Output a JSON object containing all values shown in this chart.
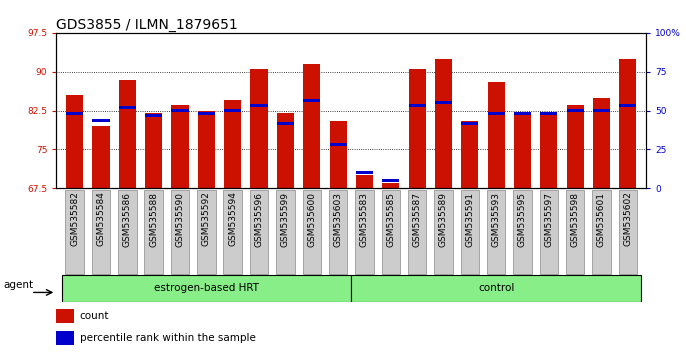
{
  "title": "GDS3855 / ILMN_1879651",
  "samples": [
    "GSM535582",
    "GSM535584",
    "GSM535586",
    "GSM535588",
    "GSM535590",
    "GSM535592",
    "GSM535594",
    "GSM535596",
    "GSM535599",
    "GSM535600",
    "GSM535603",
    "GSM535583",
    "GSM535585",
    "GSM535587",
    "GSM535589",
    "GSM535591",
    "GSM535593",
    "GSM535595",
    "GSM535597",
    "GSM535598",
    "GSM535601",
    "GSM535602"
  ],
  "red_values": [
    85.5,
    79.5,
    88.5,
    82.0,
    83.5,
    82.5,
    84.5,
    90.5,
    82.0,
    91.5,
    80.5,
    70.0,
    68.5,
    90.5,
    92.5,
    80.5,
    88.0,
    82.0,
    82.0,
    83.5,
    85.0,
    92.5
  ],
  "blue_values": [
    82.0,
    80.5,
    83.0,
    81.5,
    82.5,
    82.0,
    82.5,
    83.5,
    80.0,
    84.5,
    76.0,
    70.5,
    69.0,
    83.5,
    84.0,
    80.0,
    82.0,
    82.0,
    82.0,
    82.5,
    82.5,
    83.5
  ],
  "group1_count": 11,
  "group2_count": 11,
  "group1_label": "estrogen-based HRT",
  "group2_label": "control",
  "agent_label": "agent",
  "ylim_left": [
    67.5,
    97.5
  ],
  "ylim_right": [
    0,
    100
  ],
  "yticks_left": [
    67.5,
    75.0,
    82.5,
    90.0,
    97.5
  ],
  "yticks_right": [
    0,
    25,
    50,
    75,
    100
  ],
  "red_color": "#cc1100",
  "blue_color": "#0000cc",
  "group_bg": "#88ee88",
  "bar_width": 0.65,
  "bar_base": 67.5,
  "title_fontsize": 10,
  "tick_fontsize": 6.5,
  "label_fontsize": 7.5,
  "legend_fontsize": 7.5
}
